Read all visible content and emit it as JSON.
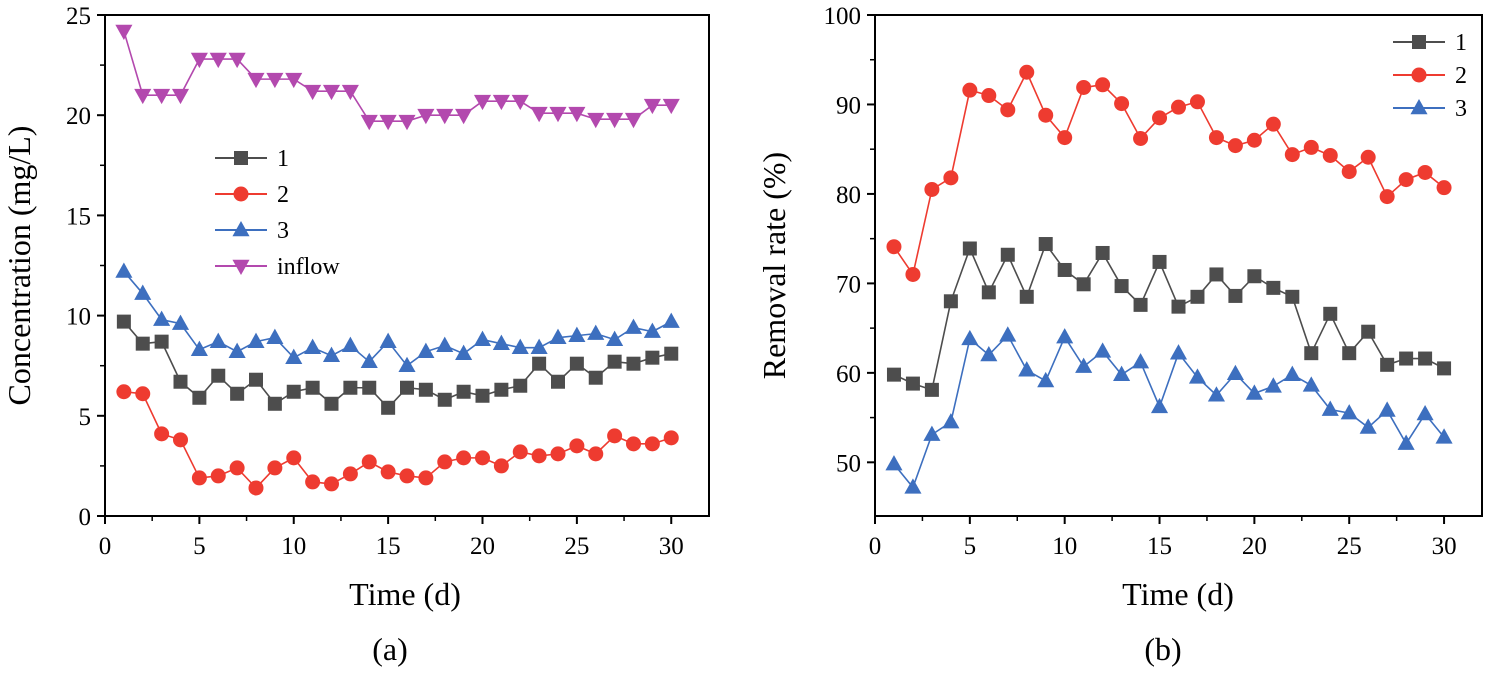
{
  "chart_data": [
    {
      "type": "line",
      "panel_label": "(a)",
      "xlabel": "Time (d)",
      "ylabel": "Concentration (mg/L)",
      "xlim": [
        0,
        32
      ],
      "ylim": [
        0,
        25
      ],
      "xticks": [
        0,
        5,
        10,
        15,
        20,
        25,
        30
      ],
      "yticks": [
        0,
        5,
        10,
        15,
        20,
        25
      ],
      "legend_position": "center-left",
      "x": [
        1,
        2,
        3,
        4,
        5,
        6,
        7,
        8,
        9,
        10,
        11,
        12,
        13,
        14,
        15,
        16,
        17,
        18,
        19,
        20,
        21,
        22,
        23,
        24,
        25,
        26,
        27,
        28,
        29,
        30
      ],
      "series": [
        {
          "name": "1",
          "color": "#4d4d4d",
          "marker": "square",
          "values": [
            9.7,
            8.6,
            8.7,
            6.7,
            5.9,
            7.0,
            6.1,
            6.8,
            5.6,
            6.2,
            6.4,
            5.6,
            6.4,
            6.4,
            5.4,
            6.4,
            6.3,
            5.8,
            6.2,
            6.0,
            6.3,
            6.5,
            7.6,
            6.7,
            7.6,
            6.9,
            7.7,
            7.6,
            7.9,
            8.1
          ]
        },
        {
          "name": "2",
          "color": "#ee3b30",
          "marker": "circle",
          "values": [
            6.2,
            6.1,
            4.1,
            3.8,
            1.9,
            2.0,
            2.4,
            1.4,
            2.4,
            2.9,
            1.7,
            1.6,
            2.1,
            2.7,
            2.2,
            2.0,
            1.9,
            2.7,
            2.9,
            2.9,
            2.5,
            3.2,
            3.0,
            3.1,
            3.5,
            3.1,
            4.0,
            3.6,
            3.6,
            3.9
          ]
        },
        {
          "name": "3",
          "color": "#3d6fbf",
          "marker": "triangle-up",
          "values": [
            12.2,
            11.1,
            9.8,
            9.6,
            8.3,
            8.7,
            8.2,
            8.7,
            8.9,
            7.9,
            8.4,
            8.0,
            8.5,
            7.7,
            8.7,
            7.5,
            8.2,
            8.5,
            8.1,
            8.8,
            8.6,
            8.4,
            8.4,
            8.9,
            9.0,
            9.1,
            8.8,
            9.4,
            9.2,
            9.7
          ]
        },
        {
          "name": "inflow",
          "color": "#b349ae",
          "marker": "triangle-down",
          "values": [
            24.2,
            21.0,
            21.0,
            21.0,
            22.8,
            22.8,
            22.8,
            21.8,
            21.8,
            21.8,
            21.2,
            21.2,
            21.2,
            19.7,
            19.7,
            19.7,
            20.0,
            20.0,
            20.0,
            20.7,
            20.7,
            20.7,
            20.1,
            20.1,
            20.1,
            19.8,
            19.8,
            19.8,
            20.5,
            20.5
          ]
        }
      ]
    },
    {
      "type": "line",
      "panel_label": "(b)",
      "xlabel": "Time (d)",
      "ylabel": "Removal rate (%)",
      "xlim": [
        0,
        32
      ],
      "ylim": [
        44,
        100
      ],
      "xticks": [
        0,
        5,
        10,
        15,
        20,
        25,
        30
      ],
      "yticks": [
        50,
        60,
        70,
        80,
        90,
        100
      ],
      "legend_position": "top-right",
      "x": [
        1,
        2,
        3,
        4,
        5,
        6,
        7,
        8,
        9,
        10,
        11,
        12,
        13,
        14,
        15,
        16,
        17,
        18,
        19,
        20,
        21,
        22,
        23,
        24,
        25,
        26,
        27,
        28,
        29,
        30
      ],
      "series": [
        {
          "name": "1",
          "color": "#4d4d4d",
          "marker": "square",
          "values": [
            59.8,
            58.8,
            58.1,
            68.0,
            73.9,
            69.0,
            73.2,
            68.5,
            74.4,
            71.5,
            69.9,
            73.4,
            69.7,
            67.6,
            72.4,
            67.4,
            68.5,
            71.0,
            68.6,
            70.8,
            69.5,
            68.5,
            62.2,
            66.6,
            62.2,
            64.6,
            60.9,
            61.6,
            61.6,
            60.5
          ]
        },
        {
          "name": "2",
          "color": "#ee3b30",
          "marker": "circle",
          "values": [
            74.1,
            71.0,
            80.5,
            81.8,
            91.6,
            91.0,
            89.4,
            93.6,
            88.8,
            86.3,
            91.9,
            92.2,
            90.1,
            86.2,
            88.5,
            89.7,
            90.3,
            86.3,
            85.4,
            86.0,
            87.8,
            84.4,
            85.2,
            84.3,
            82.5,
            84.1,
            79.7,
            81.6,
            82.4,
            80.7
          ]
        },
        {
          "name": "3",
          "color": "#3d6fbf",
          "marker": "triangle-up",
          "values": [
            49.8,
            47.2,
            53.1,
            54.5,
            63.8,
            62.0,
            64.2,
            60.3,
            59.1,
            64.0,
            60.7,
            62.4,
            59.8,
            61.2,
            56.2,
            62.2,
            59.5,
            57.5,
            59.9,
            57.7,
            58.5,
            59.8,
            58.6,
            55.9,
            55.5,
            53.9,
            55.8,
            52.1,
            55.4,
            52.8
          ]
        }
      ]
    }
  ]
}
